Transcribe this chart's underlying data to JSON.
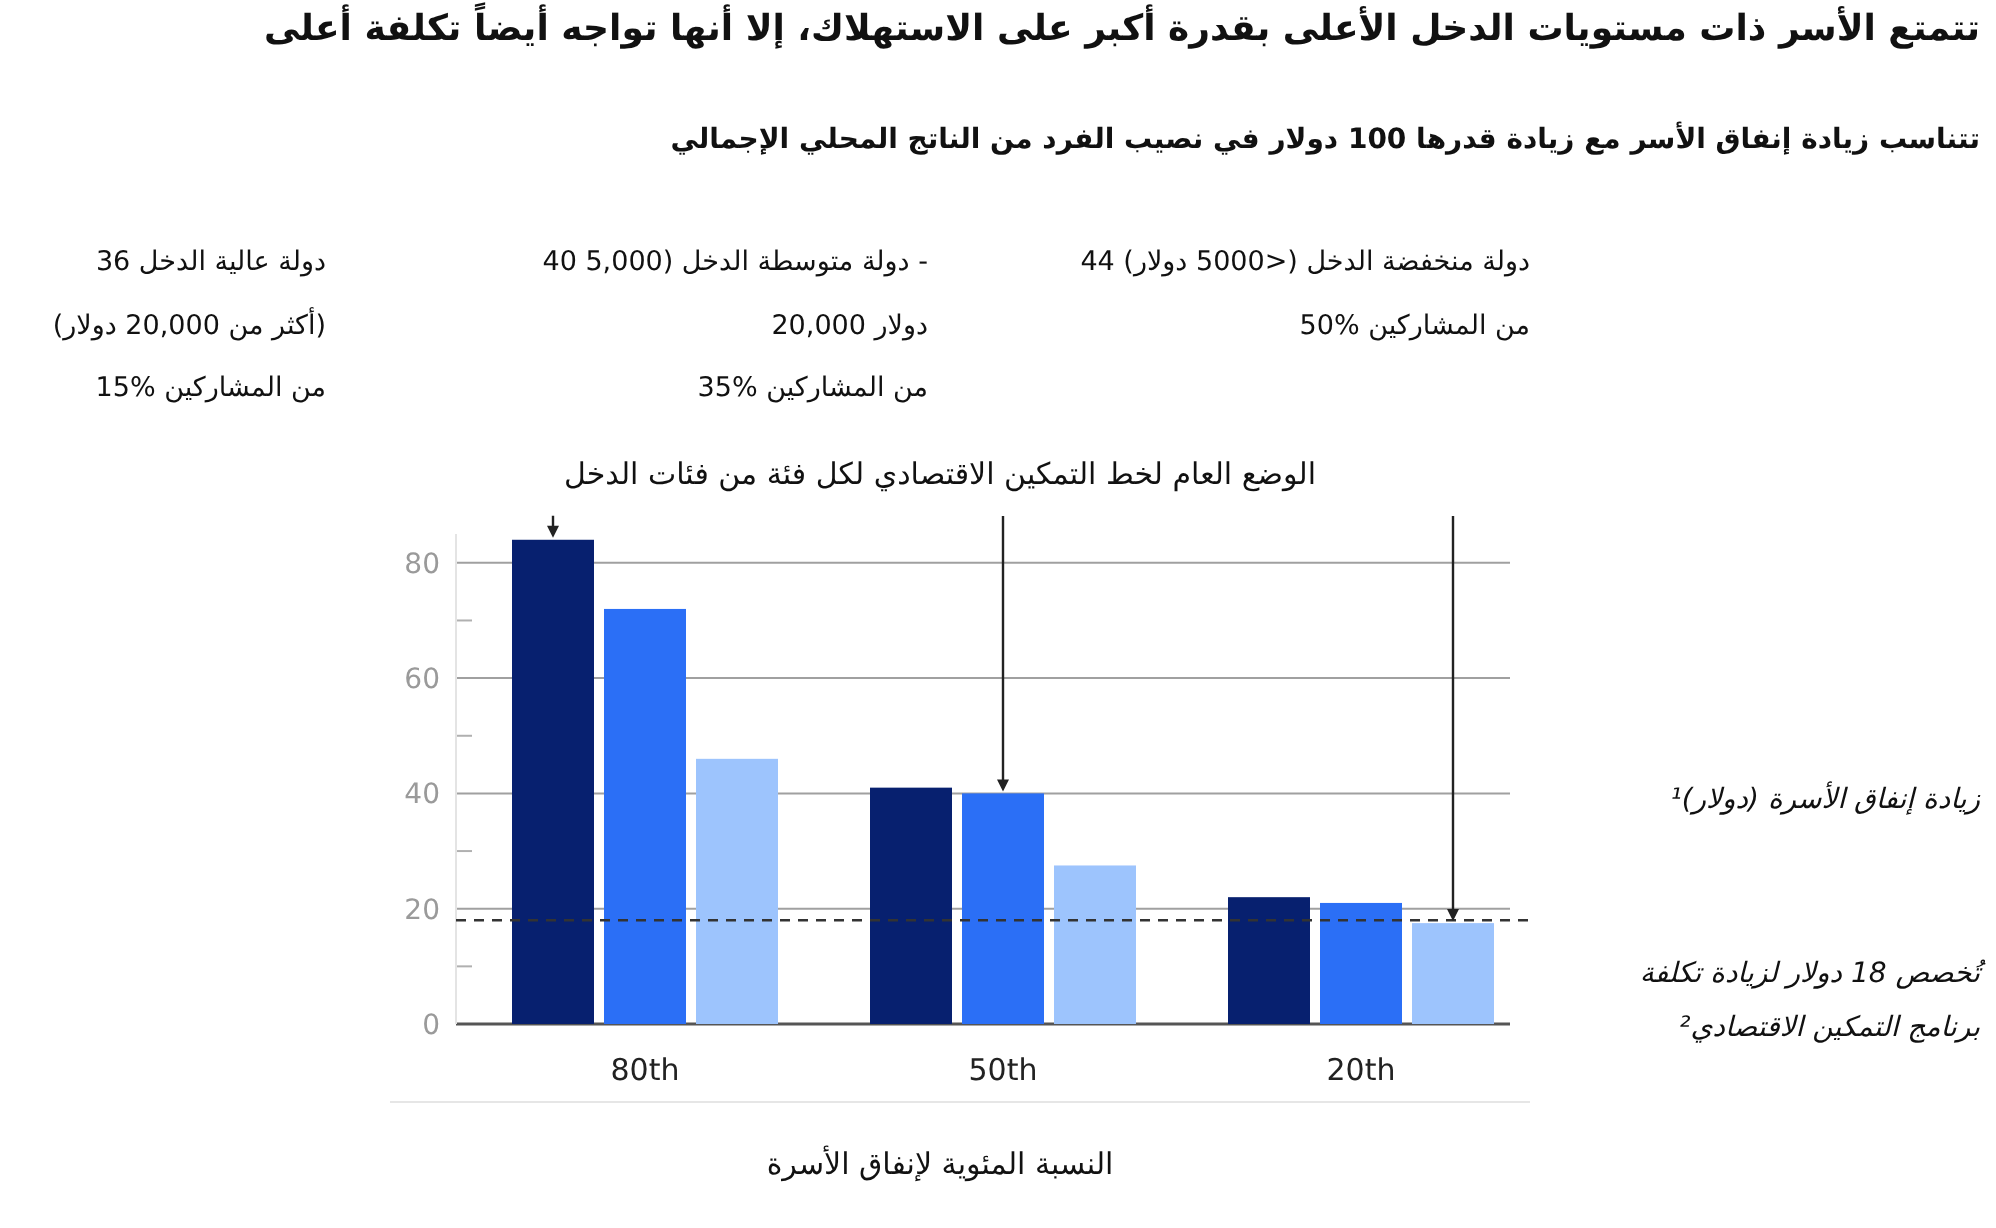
{
  "chart_data": {
    "type": "bar",
    "title": "تتمتع الأسر ذات مستويات الدخل الأعلى بقدرة أكبر على الاستهلاك، إلا أنها تواجه أيضاً تكلفة أعلى",
    "subtitle": "تتناسب زيادة إنفاق الأسر مع زيادة قدرها 100 دولار في نصيب الفرد من الناتج المحلي الإجمالي",
    "xlabel": "النسبة المئوية لإنفاق الأسرة",
    "categories": [
      "80th",
      "50th",
      "20th"
    ],
    "series": [
      {
        "color": "#07206f",
        "values": [
          84,
          41,
          22
        ]
      },
      {
        "color": "#2b6ff6",
        "values": [
          72,
          40,
          21
        ]
      },
      {
        "color": "#9dc4fd",
        "values": [
          46,
          27.5,
          17.5
        ]
      }
    ],
    "ylim": [
      0,
      85
    ],
    "yticks": [
      0,
      {
        "value": 10,
        "label": null
      },
      20,
      {
        "value": 30,
        "label": null
      },
      40,
      {
        "value": 50,
        "label": null
      },
      60,
      {
        "value": 70,
        "label": null
      },
      80
    ],
    "grid": "y",
    "ref_lines": [
      {
        "axis": "y",
        "value": 18,
        "label": "تُخصص 18 دولار لزيادة تكلفة برنامج التمكين الاقتصادي²",
        "line_style": "dashed",
        "color": "#333333"
      }
    ],
    "annotations": [
      "44 دولة منخفضة الدخل (<5000 دولار)\n50% من المشاركين",
      "40 دولة متوسطة الدخل (5,000 -\n20,000 دولار\n35% من المشاركين",
      "36 دولة عالية الدخل\n(أكثر من 20,000 دولار)\n15% من المشاركين",
      "الوضع العام لخط التمكين الاقتصادي لكل فئة من فئات الدخل",
      "زيادة إنفاق الأسرة (دولار)¹"
    ]
  }
}
